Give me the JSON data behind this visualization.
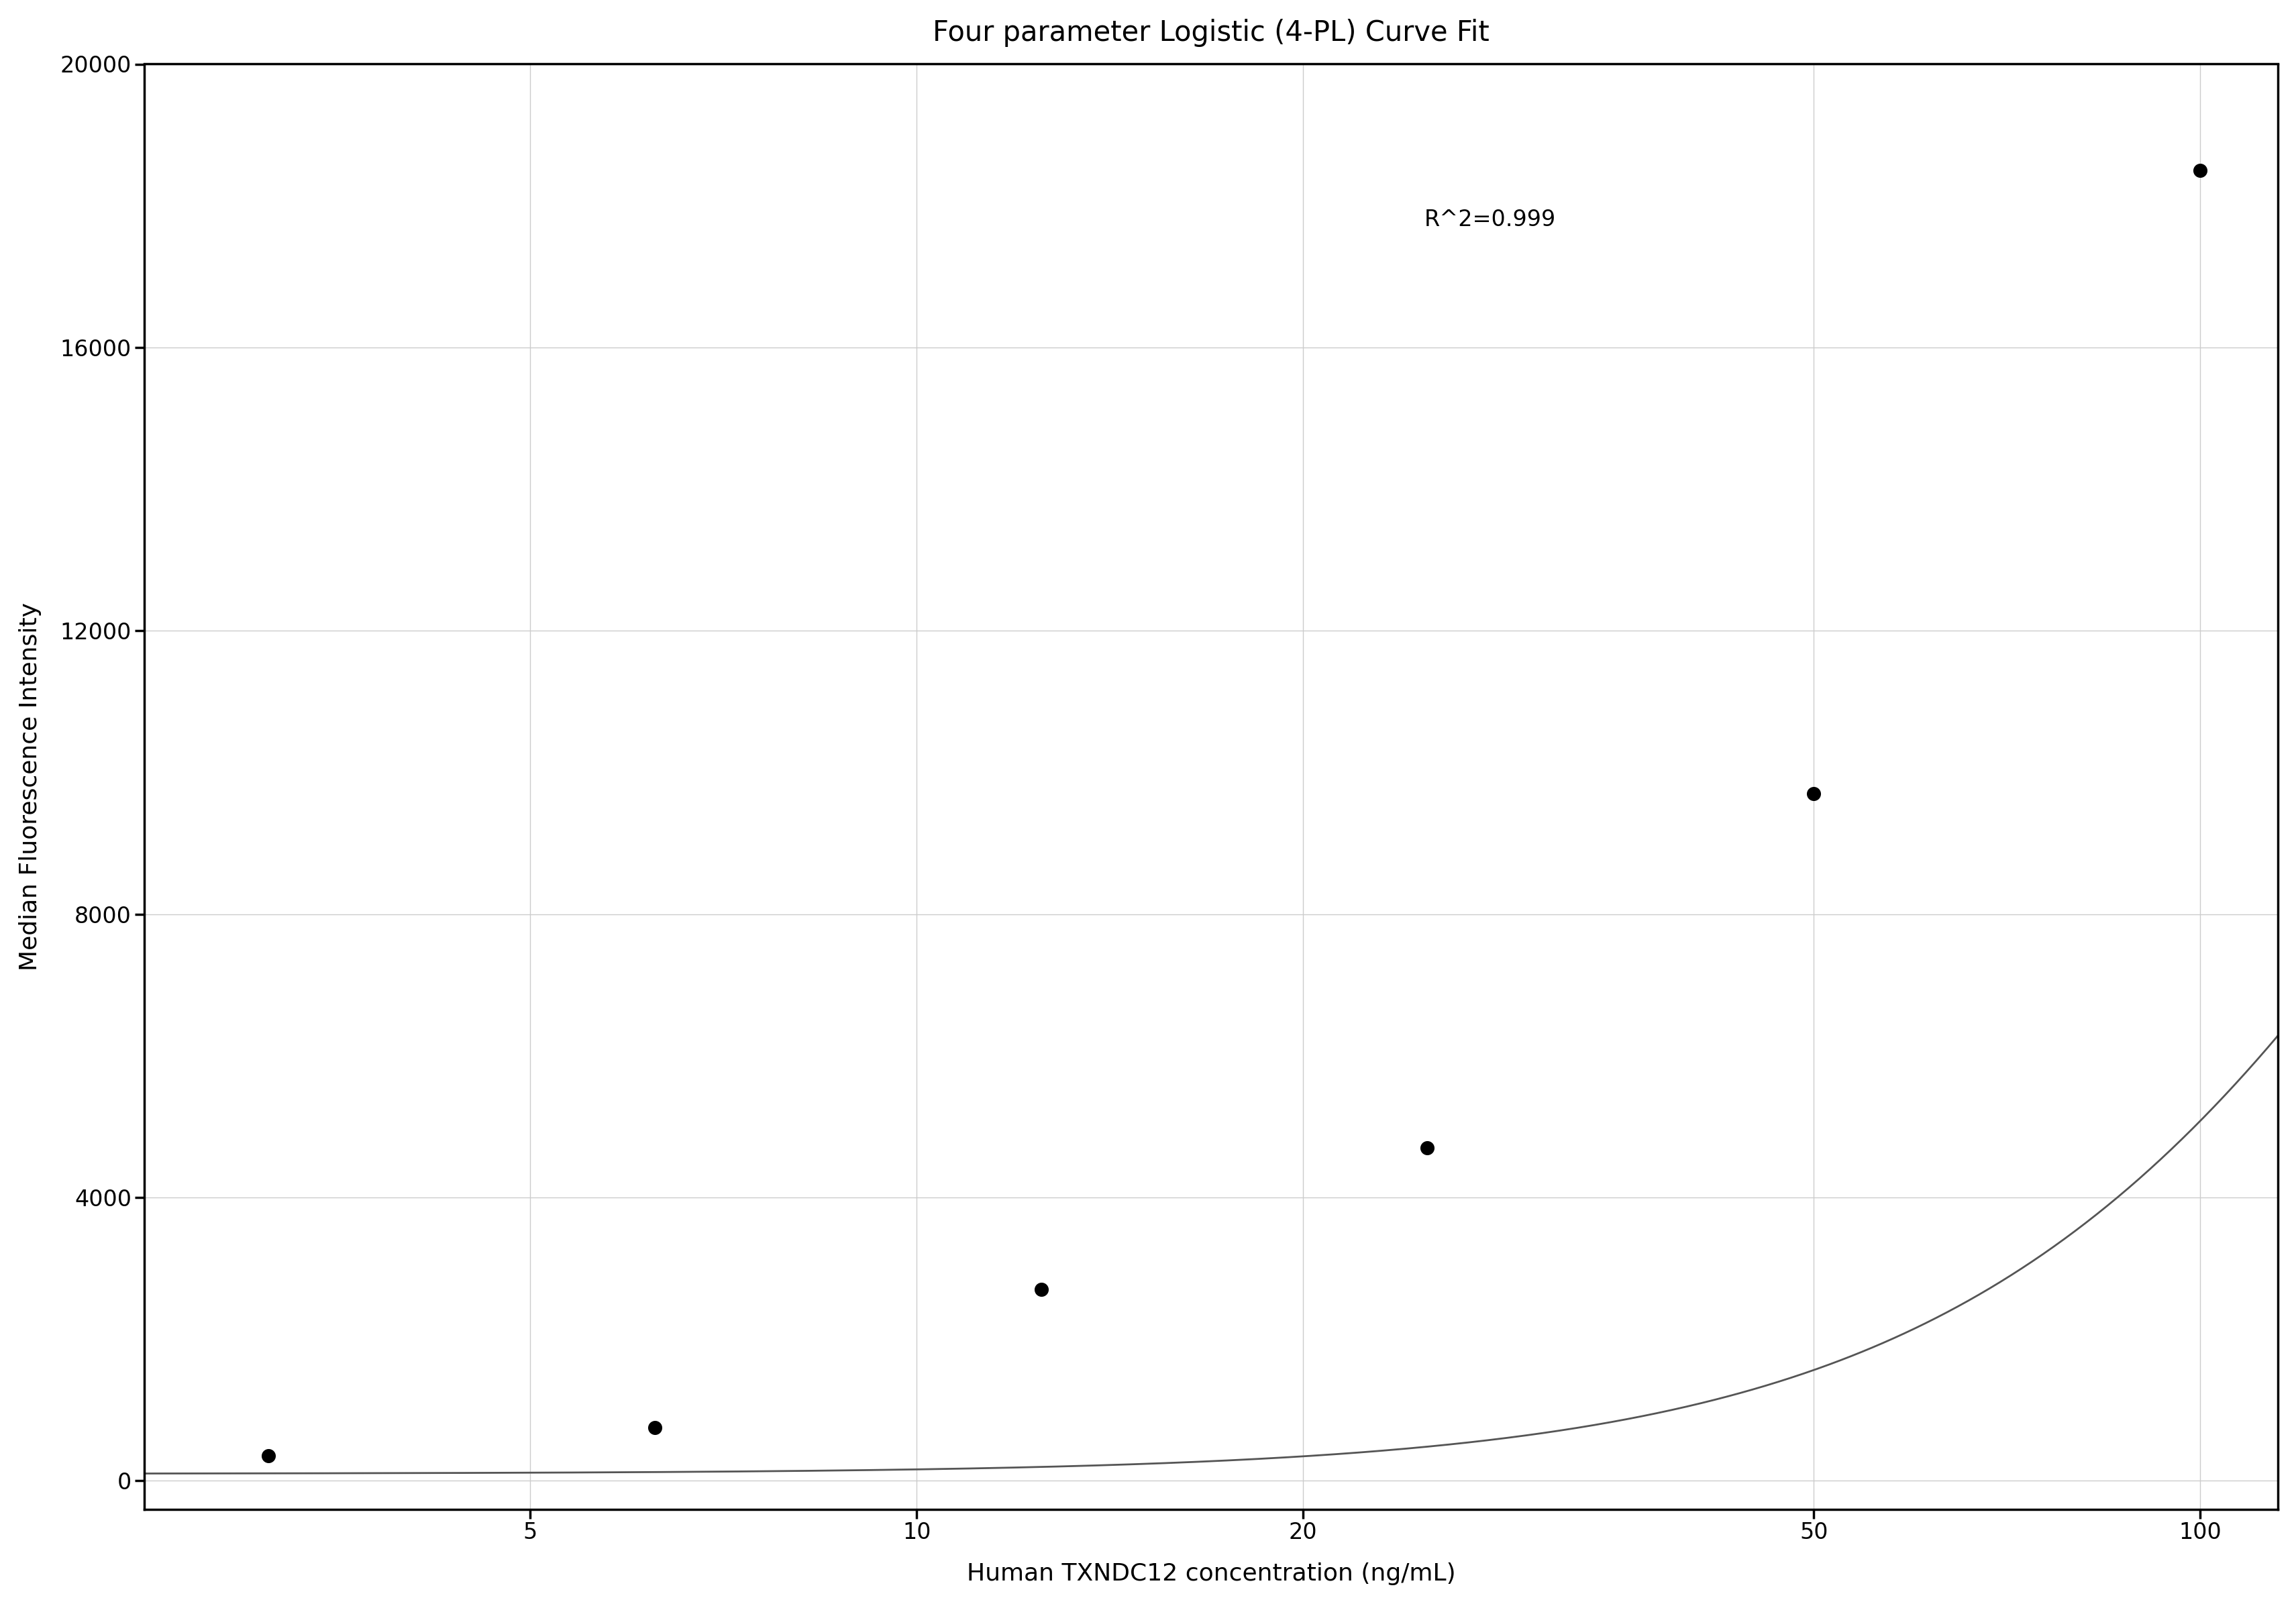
{
  "title": "Four parameter Logistic (4-PL) Curve Fit",
  "xlabel": "Human TXNDC12 concentration (ng/mL)",
  "ylabel": "Median Fluorescence Intensity",
  "r_squared_text": "R^2=0.999",
  "data_x": [
    3.125,
    6.25,
    12.5,
    25.0,
    50.0,
    100.0
  ],
  "data_y": [
    350,
    750,
    2700,
    4700,
    9700,
    18500
  ],
  "xmin": 2.5,
  "xmax": 115,
  "ymin": -400,
  "ymax": 20000,
  "xticks": [
    5,
    10,
    20,
    50,
    100
  ],
  "yticks": [
    0,
    4000,
    8000,
    12000,
    16000,
    20000
  ],
  "line_color": "#555555",
  "marker_color": "#000000",
  "grid_color": "#cccccc",
  "bg_color": "#ffffff",
  "title_fontsize": 30,
  "label_fontsize": 26,
  "tick_fontsize": 24,
  "annotation_fontsize": 24
}
